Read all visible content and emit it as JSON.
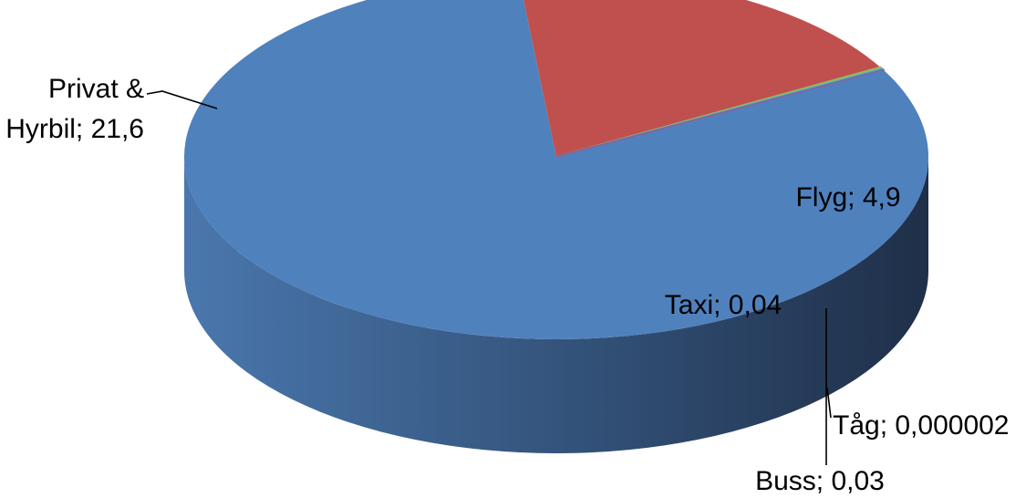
{
  "chart_data": {
    "type": "pie",
    "style": "3d",
    "slices": [
      {
        "name": "Privat & Hyrbil",
        "value": 21.6,
        "color": "#4F81BD",
        "label_lines": [
          "Privat &",
          "Hyrbil; 21,6"
        ]
      },
      {
        "name": "Flyg",
        "value": 4.9,
        "color": "#C0504D",
        "label_lines": [
          "Flyg; 4,9"
        ]
      },
      {
        "name": "Taxi",
        "value": 0.04,
        "color": "#9BBB59",
        "label_lines": [
          "Taxi; 0,04"
        ]
      },
      {
        "name": "Buss",
        "value": 0.03,
        "color": "#4BACC6",
        "label_lines": [
          "Buss; 0,03"
        ]
      },
      {
        "name": "Tåg",
        "value": 2e-06,
        "color": "#8064A2",
        "label_lines": [
          "Tåg; 0,000002"
        ]
      }
    ],
    "title": "",
    "legend": "none"
  }
}
